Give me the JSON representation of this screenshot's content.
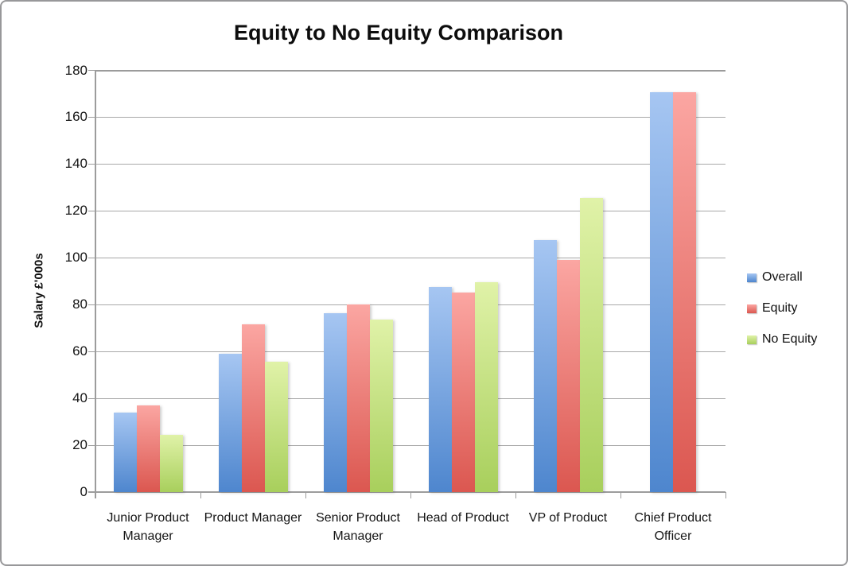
{
  "window": {
    "border_color": "#98989a",
    "background": "#ffffff"
  },
  "chart_data": {
    "type": "bar",
    "title": "Equity to No Equity Comparison",
    "xlabel": "",
    "ylabel": "Salary £'000s",
    "ylim": [
      0,
      180
    ],
    "ytick_step": 20,
    "yticks": [
      0,
      20,
      40,
      60,
      80,
      100,
      120,
      140,
      160,
      180
    ],
    "grid": true,
    "legend_position": "right",
    "categories": [
      "Junior Product Manager",
      "Product Manager",
      "Senior Product Manager",
      "Head of Product",
      "VP of Product",
      "Chief Product Officer"
    ],
    "series": [
      {
        "name": "Overall",
        "color_top": "#a6c6f2",
        "color_bottom": "#4e86ce",
        "values": [
          34,
          59,
          76.5,
          87.5,
          107.5,
          170.5
        ]
      },
      {
        "name": "Equity",
        "color_top": "#fba6a2",
        "color_bottom": "#db5750",
        "values": [
          37,
          71.5,
          80,
          85,
          99,
          170.5
        ]
      },
      {
        "name": "No Equity",
        "color_top": "#e0f2a8",
        "color_bottom": "#a8cf5c",
        "values": [
          24.5,
          55.5,
          73.5,
          89.5,
          125.5,
          null
        ]
      }
    ]
  }
}
